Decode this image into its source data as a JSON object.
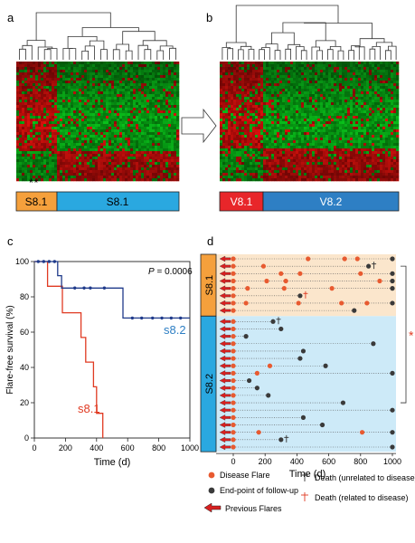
{
  "panels": {
    "a": {
      "letter": "a",
      "asterisks": "**",
      "group_left": "S8.1",
      "group_right": "S8.1"
    },
    "b": {
      "letter": "b",
      "group_left": "V8.1",
      "group_right": "V8.2"
    },
    "c": {
      "letter": "c",
      "p_value_prefix": "P",
      "p_value_rest": " = 0.0006",
      "curve_labels": {
        "s82": "s8.2",
        "s81": "s8.1"
      }
    },
    "d": {
      "letter": "d",
      "group_top": "S8.1",
      "group_bottom": "S8.2",
      "significance_mark": "*",
      "x_ticks": [
        "0",
        "200",
        "400",
        "600",
        "800",
        "1000"
      ],
      "xlabel": "Time (d)"
    }
  },
  "legend": {
    "disease_flare": "Disease Flare",
    "end_point": "End-point of follow-up",
    "previous_flares": "Previous Flares",
    "death_unrelated": "Death (unrelated to disease)",
    "death_related": "Death (related to disease)"
  },
  "colors": {
    "orange_group": "#f5a03c",
    "blue_group": "#2aa8e0",
    "red_group": "#e8262a",
    "dark_blue_group": "#2e7fc4",
    "curve_s82": "#1f3a8a",
    "curve_s81": "#e03a22",
    "flare_dot": "#e85a30",
    "end_dot": "#3a3a3a",
    "arrow": "#d82020",
    "bg_top": "#fbe6cc",
    "bg_bottom": "#cdeaf8"
  },
  "chart_data": [
    {
      "type": "line",
      "title": "",
      "xlabel": "Time (d)",
      "ylabel": "Flare-free survival (%)",
      "xlim": [
        0,
        1000
      ],
      "ylim": [
        0,
        100
      ],
      "x_ticks": [
        0,
        200,
        400,
        600,
        800,
        1000
      ],
      "y_ticks": [
        0,
        20,
        40,
        60,
        80,
        100
      ],
      "grid": false,
      "series": [
        {
          "name": "s8.2",
          "step_points": [
            [
              0,
              100
            ],
            [
              150,
              100
            ],
            [
              150,
              92
            ],
            [
              175,
              92
            ],
            [
              175,
              85
            ],
            [
              570,
              85
            ],
            [
              570,
              68
            ],
            [
              1000,
              68
            ]
          ],
          "censor_x": [
            25,
            60,
            95,
            130,
            260,
            320,
            360,
            450,
            630,
            690,
            760,
            820,
            880,
            940
          ]
        },
        {
          "name": "s8.1",
          "step_points": [
            [
              0,
              100
            ],
            [
              85,
              100
            ],
            [
              85,
              86
            ],
            [
              180,
              86
            ],
            [
              180,
              71
            ],
            [
              300,
              71
            ],
            [
              300,
              57
            ],
            [
              330,
              57
            ],
            [
              330,
              43
            ],
            [
              380,
              43
            ],
            [
              380,
              29
            ],
            [
              400,
              29
            ],
            [
              400,
              14
            ],
            [
              440,
              14
            ],
            [
              440,
              0
            ]
          ],
          "censor_x": []
        }
      ]
    },
    {
      "type": "scatter",
      "title": "",
      "xlabel": "Time (d)",
      "xlim": [
        0,
        1000
      ],
      "x_ticks": [
        0,
        200,
        400,
        600,
        800,
        1000
      ],
      "groups": [
        {
          "name": "S8.1",
          "rows": [
            0,
            1,
            2,
            3,
            4,
            5,
            6,
            7
          ]
        },
        {
          "name": "S8.2",
          "rows": [
            8,
            9,
            10,
            11,
            12,
            13,
            14,
            15,
            16,
            17,
            18,
            19,
            20,
            21,
            22,
            23,
            24,
            25
          ]
        }
      ],
      "rows": [
        {
          "flares": [
            470,
            700,
            780
          ],
          "end": 1000
        },
        {
          "flares": [
            190
          ],
          "end": 850,
          "death": "unrelated"
        },
        {
          "flares": [
            300,
            420,
            800
          ],
          "end": 1000
        },
        {
          "flares": [
            210,
            330,
            920
          ],
          "end": 1000
        },
        {
          "flares": [
            90,
            320,
            620
          ],
          "end": 1000
        },
        {
          "flares": [],
          "end": 420,
          "death": "related"
        },
        {
          "flares": [
            80,
            410,
            680,
            840
          ],
          "end": 1000
        },
        {
          "flares": [],
          "end": 760
        },
        {
          "flares": [],
          "end": 250,
          "death": "unrelated"
        },
        {
          "flares": [],
          "end": 300
        },
        {
          "flares": [],
          "end": 80
        },
        {
          "flares": [],
          "end": 880
        },
        {
          "flares": [],
          "end": 440
        },
        {
          "flares": [],
          "end": 420
        },
        {
          "flares": [
            230
          ],
          "end": 580
        },
        {
          "flares": [
            150
          ],
          "end": 1000
        },
        {
          "flares": [],
          "end": 100
        },
        {
          "flares": [],
          "end": 150
        },
        {
          "flares": [],
          "end": 220
        },
        {
          "flares": [],
          "end": 690
        },
        {
          "flares": [],
          "end": 1000
        },
        {
          "flares": [],
          "end": 440
        },
        {
          "flares": [],
          "end": 560
        },
        {
          "flares": [
            160,
            810
          ],
          "end": 1000
        },
        {
          "flares": [],
          "end": 300,
          "death": "unrelated"
        },
        {
          "flares": [],
          "end": 1000
        }
      ]
    }
  ]
}
